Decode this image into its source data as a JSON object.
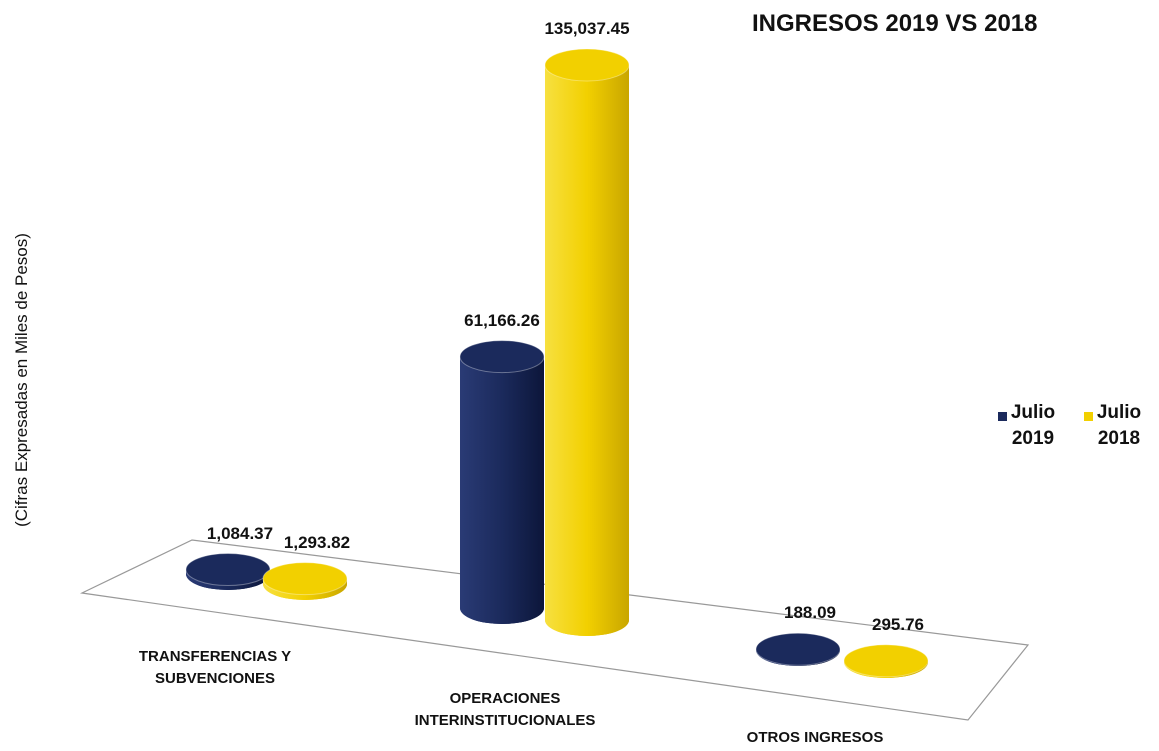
{
  "chart_data": {
    "type": "bar3d",
    "title": "INGRESOS 2019 VS 2018",
    "y_label": "(Cifras Expresadas en Miles  de Pesos)",
    "categories": [
      "TRANSFERENCIAS Y SUBVENCIONES",
      "OPERACIONES INTERINSTITUCIONALES",
      "OTROS INGRESOS"
    ],
    "series": [
      {
        "name": "Julio 2019",
        "color": "#1b2a5c",
        "values": [
          1084.37,
          61166.26,
          188.09
        ],
        "value_labels": [
          "1,084.37",
          "61,166.26",
          "188.09"
        ]
      },
      {
        "name": "Julio 2018",
        "color": "#f2d000",
        "values": [
          1293.82,
          135037.45,
          295.76
        ],
        "value_labels": [
          "1,293.82",
          "135,037.45",
          "295.76"
        ]
      }
    ],
    "legend": "right"
  }
}
